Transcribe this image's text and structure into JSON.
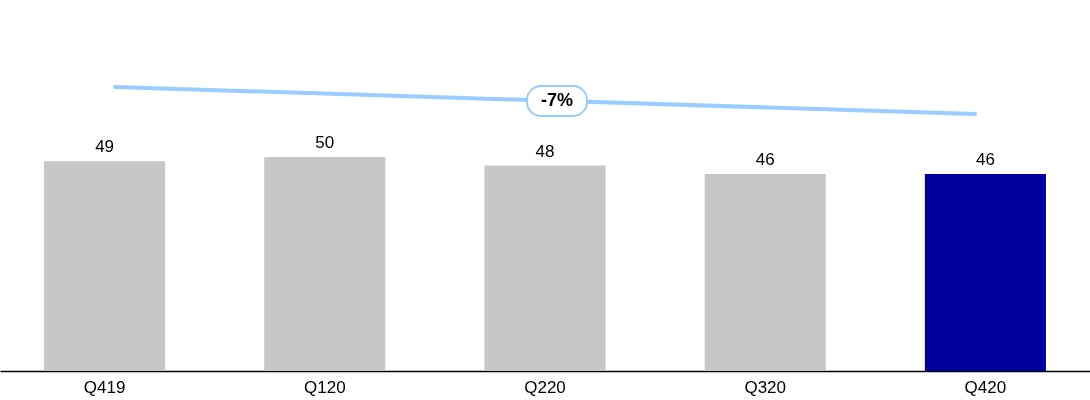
{
  "chart_data": {
    "type": "bar",
    "categories": [
      "Q419",
      "Q120",
      "Q220",
      "Q320",
      "Q420"
    ],
    "values": [
      49,
      50,
      48,
      46,
      46
    ],
    "colors": [
      "#c8c6c7",
      "#c8c6c7",
      "#c8c6c7",
      "#c8c6c7",
      "#0000a0"
    ],
    "data_labels": true,
    "grid": false,
    "annotations": [
      "-7%"
    ]
  }
}
